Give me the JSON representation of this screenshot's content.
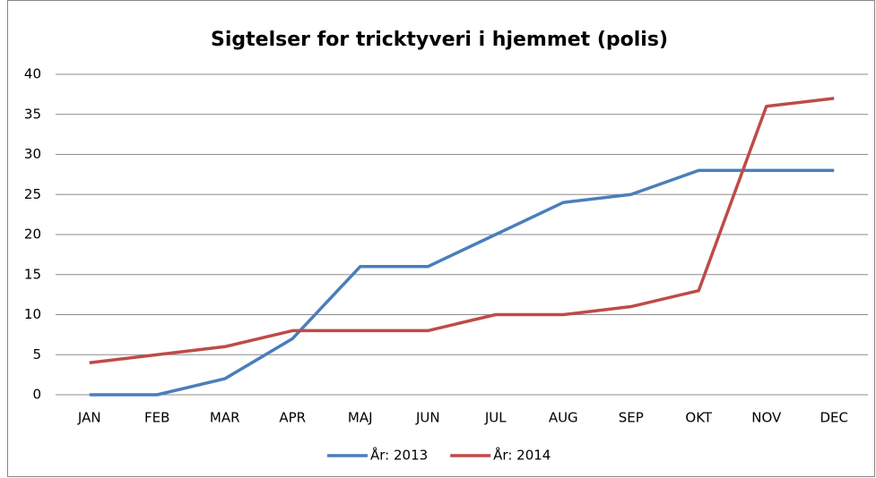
{
  "chart_data": {
    "type": "line",
    "title": "Sigtelser for tricktyveri i hjemmet (polis)",
    "categories": [
      "JAN",
      "FEB",
      "MAR",
      "APR",
      "MAJ",
      "JUN",
      "JUL",
      "AUG",
      "SEP",
      "OKT",
      "NOV",
      "DEC"
    ],
    "series": [
      {
        "name": "År: 2013",
        "color": "#4a7ebb",
        "values": [
          0,
          0,
          2,
          7,
          16,
          16,
          20,
          24,
          25,
          28,
          28,
          28
        ]
      },
      {
        "name": "År: 2014",
        "color": "#be4b48",
        "values": [
          4,
          5,
          6,
          8,
          8,
          8,
          10,
          10,
          11,
          13,
          36,
          37
        ]
      }
    ],
    "ylim": [
      0,
      40
    ],
    "yticks": [
      0,
      5,
      10,
      15,
      20,
      25,
      30,
      35,
      40
    ],
    "grid": true,
    "legend": "bottom"
  }
}
